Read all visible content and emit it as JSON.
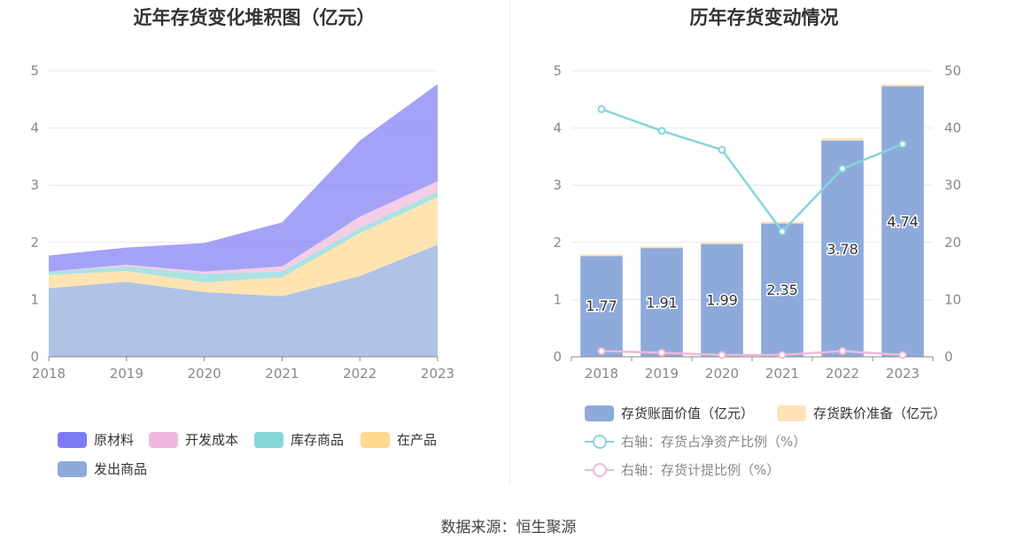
{
  "source_label": "数据来源：恒生聚源",
  "chart_data": [
    {
      "type": "area",
      "stacked": true,
      "title": "近年存货变化堆积图（亿元）",
      "categories": [
        "2018",
        "2019",
        "2020",
        "2021",
        "2022",
        "2023"
      ],
      "ylim": [
        0,
        5
      ],
      "yticks": [
        "0",
        "1",
        "2",
        "3",
        "4",
        "5"
      ],
      "grid": true,
      "legend_position": "bottom",
      "series": [
        {
          "name": "发出商品",
          "color": "#8eaadb",
          "values": [
            1.2,
            1.31,
            1.13,
            1.06,
            1.41,
            1.96
          ]
        },
        {
          "name": "在产品",
          "color": "#ffd891",
          "values": [
            0.23,
            0.19,
            0.17,
            0.33,
            0.75,
            0.83
          ]
        },
        {
          "name": "库存商品",
          "color": "#87d6d8",
          "values": [
            0.06,
            0.08,
            0.15,
            0.1,
            0.09,
            0.1
          ]
        },
        {
          "name": "开发成本",
          "color": "#efb8dc",
          "values": [
            0.0,
            0.03,
            0.04,
            0.09,
            0.2,
            0.18
          ]
        },
        {
          "name": "原材料",
          "color": "#7d7bf3",
          "values": [
            0.28,
            0.3,
            0.5,
            0.77,
            1.33,
            1.7
          ]
        }
      ],
      "legend_order": [
        "原材料",
        "开发成本",
        "库存商品",
        "在产品",
        "发出商品"
      ]
    },
    {
      "type": "bar",
      "title": "历年存货变动情况",
      "categories": [
        "2018",
        "2019",
        "2020",
        "2021",
        "2022",
        "2023"
      ],
      "ylim": [
        0,
        5
      ],
      "yticks": [
        "0",
        "1",
        "2",
        "3",
        "4",
        "5"
      ],
      "y2lim": [
        0,
        50
      ],
      "y2ticks": [
        "0",
        "10",
        "20",
        "30",
        "40",
        "50"
      ],
      "grid": true,
      "legend_position": "bottom",
      "series": [
        {
          "name": "存货账面价值（亿元）",
          "axis": "left",
          "kind": "bar",
          "color": "#8eaadb",
          "values": [
            1.77,
            1.91,
            1.99,
            2.35,
            3.78,
            4.74
          ],
          "labels": [
            "1.77",
            "1.91",
            "1.99",
            "2.35",
            "3.78",
            "4.74"
          ]
        },
        {
          "name": "存货跌价准备（亿元）",
          "axis": "left",
          "kind": "bar",
          "color": "#ffe2b8",
          "values": [
            0.02,
            0.02,
            0.01,
            0.01,
            0.04,
            0.02
          ]
        },
        {
          "name": "右轴：存货占净资产比例（%）",
          "axis": "right",
          "kind": "line",
          "color": "#86d5d8",
          "values": [
            43.3,
            39.5,
            36.2,
            21.9,
            32.9,
            37.2
          ]
        },
        {
          "name": "右轴：存货计提比例（%）",
          "axis": "right",
          "kind": "line",
          "color": "#efb8dc",
          "values": [
            1.0,
            0.7,
            0.3,
            0.3,
            1.0,
            0.3
          ]
        }
      ]
    }
  ]
}
